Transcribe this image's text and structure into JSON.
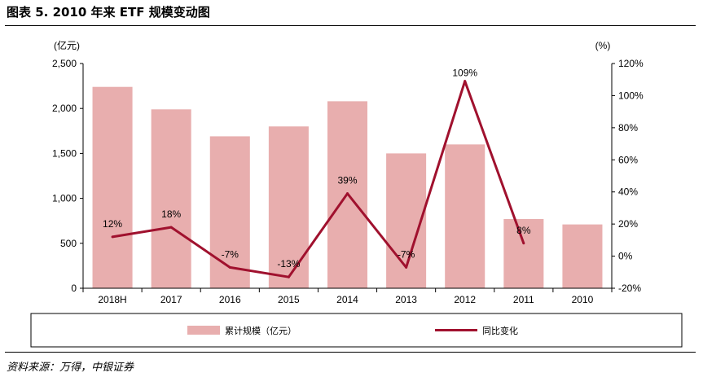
{
  "figure": {
    "title": "图表 5. 2010 年来 ETF 规模变动图",
    "source": "资料来源：万得，中银证券"
  },
  "colors": {
    "bar": "#e8aeae",
    "line": "#a0112e"
  },
  "chart_data": {
    "type": "bar",
    "categories": [
      "2018H",
      "2017",
      "2016",
      "2015",
      "2014",
      "2013",
      "2012",
      "2011",
      "2010"
    ],
    "left_unit": "(亿元)",
    "right_unit": "(%)",
    "ylim": [
      0,
      2500
    ],
    "y_ticks": [
      0,
      500,
      1000,
      1500,
      2000,
      2500
    ],
    "y_tick_labels": [
      "0",
      "500",
      "1,000",
      "1,500",
      "2,000",
      "2,500"
    ],
    "y2lim": [
      -20,
      120
    ],
    "y2_ticks": [
      -20,
      0,
      20,
      40,
      60,
      80,
      100,
      120
    ],
    "y2_tick_labels": [
      "-20%",
      "0%",
      "20%",
      "40%",
      "60%",
      "80%",
      "100%",
      "120%"
    ],
    "legend_position": "bottom",
    "series": [
      {
        "name": "累计规模（亿元）",
        "type": "bar",
        "axis": "left",
        "values": [
          2240,
          1990,
          1690,
          1800,
          2080,
          1500,
          1600,
          770,
          710
        ]
      },
      {
        "name": "同比变化",
        "type": "line",
        "axis": "right",
        "values": [
          12,
          18,
          -7,
          -13,
          39,
          -7,
          109,
          8,
          null
        ],
        "labels": [
          "12%",
          "18%",
          "-7%",
          "-13%",
          "39%",
          "-7%",
          "109%",
          "8%",
          null
        ]
      }
    ]
  }
}
